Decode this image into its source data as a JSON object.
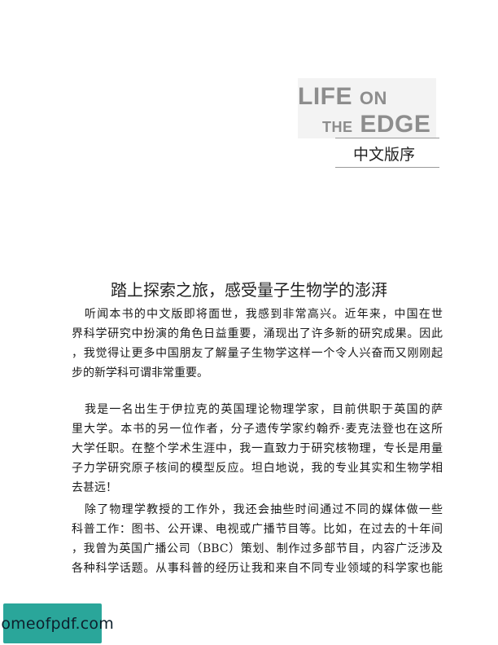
{
  "logo": {
    "word_life": "LIFE",
    "word_on": "ON",
    "word_the": "THE",
    "word_edge": "EDGE"
  },
  "section_title": "中文版序",
  "heading": "踏上探索之旅，感受量子生物学的澎湃",
  "paragraphs": [
    {
      "lines": [
        "听闻本书的中文版即将面世，我感到非常高兴。近年来，中国在世",
        "界科学研究中扮演的角色日益重要，涌现出了许多新的研究成果。因此",
        "，我觉得让更多中国朋友了解量子生物学这样一个令人兴奋而又刚刚起",
        "步的新学科可谓非常重要。"
      ]
    },
    {
      "lines": [
        "我是一名出生于伊拉克的英国理论物理学家，目前供职于英国的萨",
        "里大学。本书的另一位作者，分子遗传学家约翰乔·麦克法登也在这所",
        "大学任职。在整个学术生涯中，我一直致力于研究核物理，专长是用量",
        "子力学研究原子核间的模型反应。坦白地说，我的专业其实和生物学相",
        "去甚远！"
      ]
    },
    {
      "lines": [
        "除了物理学教授的工作外，我还会抽些时间通过不同的媒体做一些",
        "科普工作：图书、公开课、电视或广播节目等。比如，在过去的十年间",
        "，我曾为英国广播公司（BBC）策划、制作过多部节目，内容广泛涉及",
        "各种科学话题。从事科普的经历让我和来自不同专业领域的科学家也能"
      ]
    }
  ],
  "watermark": "homeofpdf.com"
}
